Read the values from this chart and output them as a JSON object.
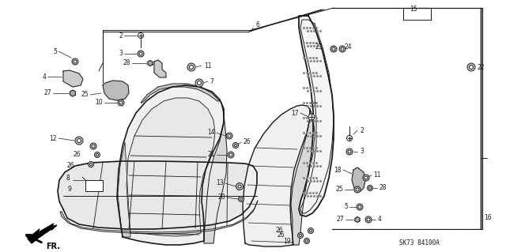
{
  "part_code": "SK73 84100A",
  "bg_color": "#ffffff",
  "line_color": "#1a1a1a",
  "fig_width": 6.4,
  "fig_height": 3.19,
  "dpi": 100
}
